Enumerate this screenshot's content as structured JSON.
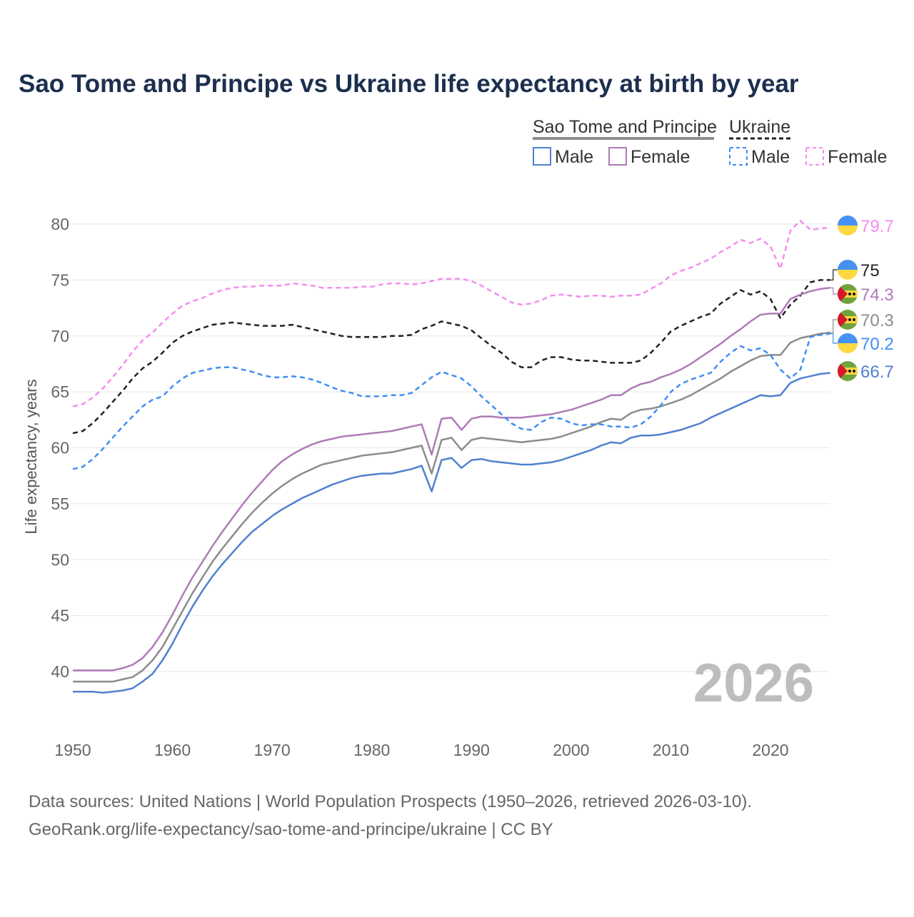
{
  "chart_data": {
    "type": "line",
    "title": "Sao Tome and Principe vs Ukraine life expectancy at birth by year",
    "xlabel": "",
    "ylabel": "Life expectancy, years",
    "xlim": [
      1950,
      2026
    ],
    "ylim": [
      36,
      82
    ],
    "x_ticks": [
      1950,
      1960,
      1970,
      1980,
      1990,
      2000,
      2010,
      2020
    ],
    "y_ticks": [
      40,
      45,
      50,
      55,
      60,
      65,
      70,
      75,
      80
    ],
    "grid": true,
    "year_watermark": "2026",
    "legend": {
      "groups": [
        {
          "label": "Sao Tome and Principe",
          "style": "solid",
          "items": [
            "Male",
            "Female"
          ]
        },
        {
          "label": "Ukraine",
          "style": "dashed",
          "items": [
            "Male",
            "Female"
          ]
        }
      ],
      "placement": "top-right"
    },
    "x_start": 1950,
    "series": [
      {
        "name": "Ukraine Female",
        "country": "Ukraine",
        "dash": true,
        "color": "#f58cf0",
        "end_label": "79.7",
        "flag": "ukraine",
        "values": [
          63.7,
          63.9,
          64.5,
          65.3,
          66.3,
          67.4,
          68.6,
          69.6,
          70.3,
          71.2,
          72.0,
          72.7,
          73.1,
          73.4,
          73.8,
          74.1,
          74.3,
          74.4,
          74.4,
          74.5,
          74.5,
          74.5,
          74.7,
          74.6,
          74.5,
          74.3,
          74.3,
          74.3,
          74.3,
          74.4,
          74.4,
          74.6,
          74.7,
          74.7,
          74.6,
          74.7,
          74.9,
          75.1,
          75.1,
          75.1,
          74.9,
          74.5,
          74.0,
          73.5,
          73.0,
          72.8,
          72.9,
          73.2,
          73.6,
          73.7,
          73.6,
          73.5,
          73.6,
          73.6,
          73.5,
          73.6,
          73.6,
          73.7,
          74.2,
          74.7,
          75.4,
          75.8,
          76.1,
          76.5,
          76.9,
          77.5,
          78.0,
          78.6,
          78.3,
          78.7,
          78.0,
          76.0,
          79.4,
          80.3,
          79.5,
          79.6,
          79.7
        ]
      },
      {
        "name": "Ukraine Total",
        "country": "Ukraine",
        "dash": true,
        "color": "#222222",
        "end_label": "75",
        "flag": "ukraine",
        "values": [
          61.3,
          61.5,
          62.2,
          63.1,
          64.1,
          65.1,
          66.2,
          67.1,
          67.7,
          68.5,
          69.4,
          70.0,
          70.4,
          70.7,
          71.0,
          71.1,
          71.2,
          71.1,
          71.0,
          70.9,
          70.9,
          70.9,
          71.0,
          70.8,
          70.6,
          70.4,
          70.2,
          70.0,
          69.9,
          69.9,
          69.9,
          69.9,
          70.0,
          70.0,
          70.1,
          70.6,
          70.9,
          71.3,
          71.1,
          70.9,
          70.5,
          69.8,
          69.1,
          68.5,
          67.7,
          67.2,
          67.2,
          67.8,
          68.1,
          68.1,
          67.9,
          67.8,
          67.8,
          67.7,
          67.6,
          67.6,
          67.6,
          67.8,
          68.5,
          69.4,
          70.4,
          70.9,
          71.3,
          71.7,
          72.0,
          72.9,
          73.5,
          74.1,
          73.7,
          74.0,
          73.3,
          71.6,
          72.8,
          73.6,
          74.8,
          75.0,
          75.0
        ]
      },
      {
        "name": "Sao Tome and Principe Female",
        "country": "Sao Tome and Principe",
        "dash": false,
        "color": "#b07ab8",
        "end_label": "74.3",
        "flag": "stp",
        "values": [
          40.1,
          40.1,
          40.1,
          40.1,
          40.1,
          40.3,
          40.6,
          41.2,
          42.2,
          43.5,
          45.1,
          46.8,
          48.4,
          49.8,
          51.2,
          52.5,
          53.7,
          54.9,
          56.0,
          57.0,
          58.0,
          58.8,
          59.4,
          59.9,
          60.3,
          60.6,
          60.8,
          61.0,
          61.1,
          61.2,
          61.3,
          61.4,
          61.5,
          61.7,
          61.9,
          62.1,
          59.4,
          62.6,
          62.7,
          61.6,
          62.6,
          62.8,
          62.8,
          62.7,
          62.7,
          62.7,
          62.8,
          62.9,
          63.0,
          63.2,
          63.4,
          63.7,
          64.0,
          64.3,
          64.7,
          64.7,
          65.3,
          65.7,
          65.9,
          66.3,
          66.6,
          67.0,
          67.5,
          68.1,
          68.7,
          69.3,
          70.0,
          70.6,
          71.3,
          71.9,
          72.0,
          72.0,
          73.3,
          73.7,
          74.0,
          74.2,
          74.3
        ]
      },
      {
        "name": "Sao Tome and Principe Total",
        "country": "Sao Tome and Principe",
        "dash": false,
        "color": "#8c8c8c",
        "end_label": "70.3",
        "flag": "stp",
        "values": [
          39.1,
          39.1,
          39.1,
          39.1,
          39.1,
          39.3,
          39.5,
          40.1,
          41.0,
          42.2,
          43.8,
          45.4,
          47.0,
          48.4,
          49.8,
          51.0,
          52.1,
          53.2,
          54.2,
          55.1,
          55.9,
          56.6,
          57.2,
          57.7,
          58.1,
          58.5,
          58.7,
          58.9,
          59.1,
          59.3,
          59.4,
          59.5,
          59.6,
          59.8,
          60.0,
          60.2,
          57.7,
          60.7,
          60.9,
          59.8,
          60.7,
          60.9,
          60.8,
          60.7,
          60.6,
          60.5,
          60.6,
          60.7,
          60.8,
          61.0,
          61.3,
          61.6,
          61.9,
          62.3,
          62.6,
          62.5,
          63.1,
          63.4,
          63.5,
          63.7,
          64.0,
          64.3,
          64.7,
          65.2,
          65.7,
          66.2,
          66.8,
          67.3,
          67.8,
          68.2,
          68.3,
          68.3,
          69.4,
          69.8,
          70.0,
          70.2,
          70.3
        ]
      },
      {
        "name": "Ukraine Male",
        "country": "Ukraine",
        "dash": true,
        "color": "#3f8ef5",
        "end_label": "70.2",
        "flag": "ukraine",
        "values": [
          58.1,
          58.3,
          59.0,
          59.9,
          60.9,
          61.9,
          62.8,
          63.7,
          64.3,
          64.6,
          65.5,
          66.2,
          66.7,
          66.9,
          67.1,
          67.2,
          67.2,
          67.0,
          66.8,
          66.5,
          66.3,
          66.3,
          66.4,
          66.3,
          66.1,
          65.8,
          65.4,
          65.1,
          64.9,
          64.6,
          64.6,
          64.6,
          64.7,
          64.7,
          64.9,
          65.6,
          66.3,
          66.8,
          66.5,
          66.2,
          65.5,
          64.6,
          63.8,
          63.0,
          62.2,
          61.7,
          61.6,
          62.3,
          62.7,
          62.6,
          62.2,
          62.0,
          62.1,
          62.1,
          61.9,
          61.9,
          61.8,
          62.1,
          62.8,
          63.8,
          65.0,
          65.7,
          66.1,
          66.4,
          66.7,
          67.7,
          68.5,
          69.1,
          68.7,
          68.9,
          68.3,
          67.0,
          66.2,
          67.0,
          69.9,
          70.1,
          70.2
        ]
      },
      {
        "name": "Sao Tome and Principe Male",
        "country": "Sao Tome and Principe",
        "dash": false,
        "color": "#5081d0",
        "end_label": "66.7",
        "flag": "stp",
        "values": [
          38.2,
          38.2,
          38.2,
          38.1,
          38.2,
          38.3,
          38.5,
          39.1,
          39.8,
          41.0,
          42.5,
          44.2,
          45.8,
          47.2,
          48.5,
          49.6,
          50.6,
          51.6,
          52.5,
          53.2,
          53.9,
          54.5,
          55.0,
          55.5,
          55.9,
          56.3,
          56.7,
          57.0,
          57.3,
          57.5,
          57.6,
          57.7,
          57.7,
          57.9,
          58.1,
          58.4,
          56.1,
          58.9,
          59.1,
          58.2,
          58.9,
          59.0,
          58.8,
          58.7,
          58.6,
          58.5,
          58.5,
          58.6,
          58.7,
          58.9,
          59.2,
          59.5,
          59.8,
          60.2,
          60.5,
          60.4,
          60.9,
          61.1,
          61.1,
          61.2,
          61.4,
          61.6,
          61.9,
          62.2,
          62.7,
          63.1,
          63.5,
          63.9,
          64.3,
          64.7,
          64.6,
          64.7,
          65.8,
          66.2,
          66.4,
          66.6,
          66.7
        ]
      }
    ]
  },
  "source": {
    "line1": "Data sources: United Nations | World Population Prospects (1950–2026, retrieved 2026-03-10).",
    "line2": "GeoRank.org/life-expectancy/sao-tome-and-principe/ukraine | CC BY"
  }
}
